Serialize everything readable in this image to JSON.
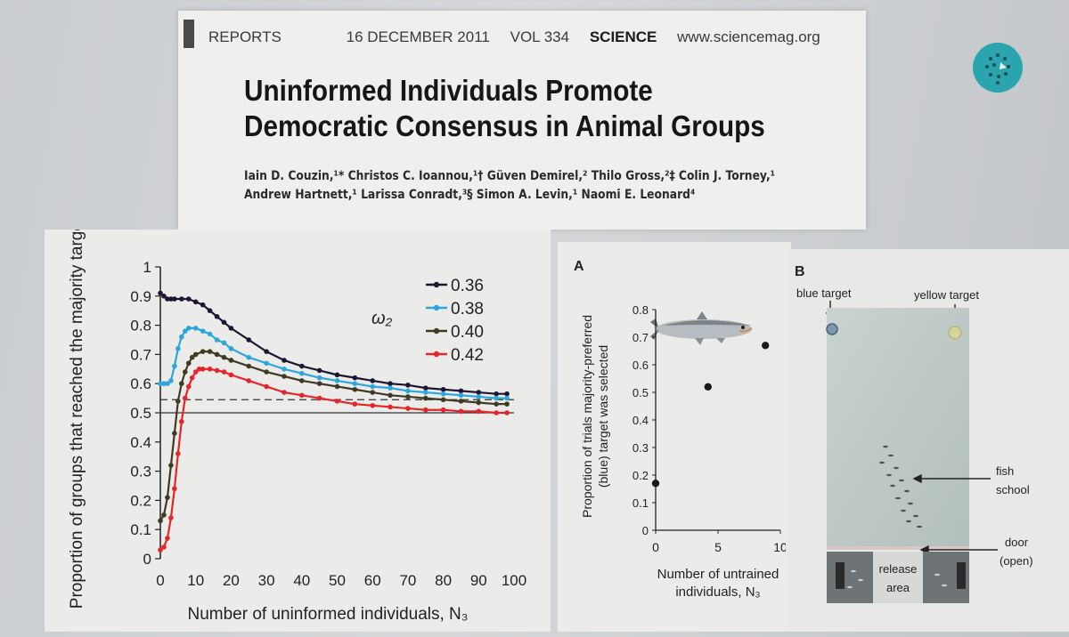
{
  "header": {
    "section": "REPORTS",
    "date": "16 DECEMBER 2011",
    "volume": "VOL 334",
    "journal": "SCIENCE",
    "url": "www.sciencemag.org"
  },
  "title": {
    "line1": "Uninformed Individuals Promote",
    "line2": "Democratic Consensus in Animal Groups"
  },
  "authors": {
    "line1": "Iain D. Couzin,¹* Christos C. Ioannou,¹† Güven Demirel,² Thilo Gross,²‡ Colin J. Torney,¹",
    "line2": "Andrew Hartnett,¹ Larissa Conradt,³§ Simon A. Levin,¹ Naomi E. Leonard⁴"
  },
  "chart_data": [
    {
      "type": "line",
      "ylabel": "Proportion of groups that reached the majority target",
      "xlabel": "Number of uninformed individuals, N₃",
      "xlim": [
        0,
        100
      ],
      "ylim": [
        0,
        1
      ],
      "xticks": [
        "0",
        "10",
        "20",
        "30",
        "40",
        "50",
        "60",
        "70",
        "80",
        "90",
        "100"
      ],
      "yticks": [
        "0",
        "0.1",
        "0.2",
        "0.3",
        "0.4",
        "0.5",
        "0.6",
        "0.7",
        "0.8",
        "0.9",
        "1"
      ],
      "legend_title": "ω₂",
      "reference_lines": [
        0.5,
        0.545
      ],
      "series": [
        {
          "name": "0.36",
          "color": "#1f1433",
          "x": [
            0,
            1,
            2,
            3,
            4,
            6,
            8,
            10,
            12,
            14,
            16,
            18,
            20,
            25,
            30,
            35,
            40,
            45,
            50,
            55,
            60,
            65,
            70,
            75,
            80,
            85,
            90,
            95,
            98
          ],
          "values": [
            0.91,
            0.9,
            0.89,
            0.89,
            0.89,
            0.89,
            0.89,
            0.88,
            0.87,
            0.85,
            0.83,
            0.81,
            0.79,
            0.75,
            0.71,
            0.68,
            0.66,
            0.645,
            0.63,
            0.62,
            0.61,
            0.6,
            0.595,
            0.585,
            0.58,
            0.575,
            0.57,
            0.565,
            0.565
          ]
        },
        {
          "name": "0.38",
          "color": "#2ea6dc",
          "x": [
            0,
            1,
            2,
            3,
            4,
            5,
            6,
            7,
            8,
            10,
            12,
            14,
            16,
            18,
            20,
            25,
            30,
            35,
            40,
            45,
            50,
            55,
            60,
            65,
            70,
            75,
            80,
            85,
            90,
            95,
            98
          ],
          "values": [
            0.6,
            0.6,
            0.6,
            0.61,
            0.66,
            0.72,
            0.76,
            0.78,
            0.79,
            0.79,
            0.78,
            0.77,
            0.75,
            0.74,
            0.72,
            0.69,
            0.67,
            0.65,
            0.635,
            0.62,
            0.61,
            0.6,
            0.59,
            0.585,
            0.575,
            0.57,
            0.565,
            0.56,
            0.555,
            0.55,
            0.55
          ]
        },
        {
          "name": "0.40",
          "color": "#3f3a22",
          "x": [
            0,
            1,
            2,
            3,
            4,
            5,
            6,
            7,
            8,
            9,
            10,
            12,
            14,
            16,
            18,
            20,
            25,
            30,
            35,
            40,
            45,
            50,
            55,
            60,
            65,
            70,
            75,
            80,
            85,
            90,
            95,
            98
          ],
          "values": [
            0.13,
            0.15,
            0.21,
            0.32,
            0.43,
            0.54,
            0.6,
            0.64,
            0.67,
            0.69,
            0.7,
            0.71,
            0.71,
            0.7,
            0.69,
            0.68,
            0.66,
            0.64,
            0.625,
            0.61,
            0.6,
            0.59,
            0.58,
            0.57,
            0.56,
            0.555,
            0.55,
            0.545,
            0.54,
            0.535,
            0.53,
            0.53
          ]
        },
        {
          "name": "0.42",
          "color": "#e4262c",
          "x": [
            0,
            1,
            2,
            3,
            4,
            5,
            6,
            7,
            8,
            9,
            10,
            11,
            12,
            14,
            16,
            18,
            20,
            25,
            30,
            35,
            40,
            45,
            50,
            55,
            60,
            65,
            70,
            75,
            80,
            85,
            90,
            95,
            98
          ],
          "values": [
            0.03,
            0.04,
            0.07,
            0.14,
            0.24,
            0.36,
            0.47,
            0.55,
            0.59,
            0.62,
            0.64,
            0.65,
            0.65,
            0.65,
            0.645,
            0.64,
            0.63,
            0.61,
            0.59,
            0.57,
            0.56,
            0.55,
            0.54,
            0.53,
            0.525,
            0.52,
            0.515,
            0.51,
            0.51,
            0.505,
            0.505,
            0.5,
            0.5
          ]
        }
      ]
    },
    {
      "type": "scatter",
      "panel_label": "A",
      "ylabel_line1": "Proportion of trials majority-preferred",
      "ylabel_line2": "(blue) target was selected",
      "xlabel_line1": "Number of untrained",
      "xlabel_line2": "individuals, N₃",
      "xlim": [
        0,
        10
      ],
      "ylim": [
        0,
        0.8
      ],
      "xticks": [
        "0",
        "5",
        "10"
      ],
      "yticks": [
        "0",
        "0.1",
        "0.2",
        "0.3",
        "0.4",
        "0.5",
        "0.6",
        "0.7",
        "0.8"
      ],
      "series": [
        {
          "x": [
            0,
            4.2,
            8.8
          ],
          "values": [
            0.17,
            0.52,
            0.67
          ]
        }
      ]
    }
  ],
  "photo": {
    "panel_label": "B",
    "blue_target": "blue target",
    "yellow_target": "yellow target",
    "fish_school_line1": "fish",
    "fish_school_line2": "school",
    "door_line1": "door",
    "door_line2": "(open)",
    "release_line1": "release",
    "release_line2": "area"
  }
}
